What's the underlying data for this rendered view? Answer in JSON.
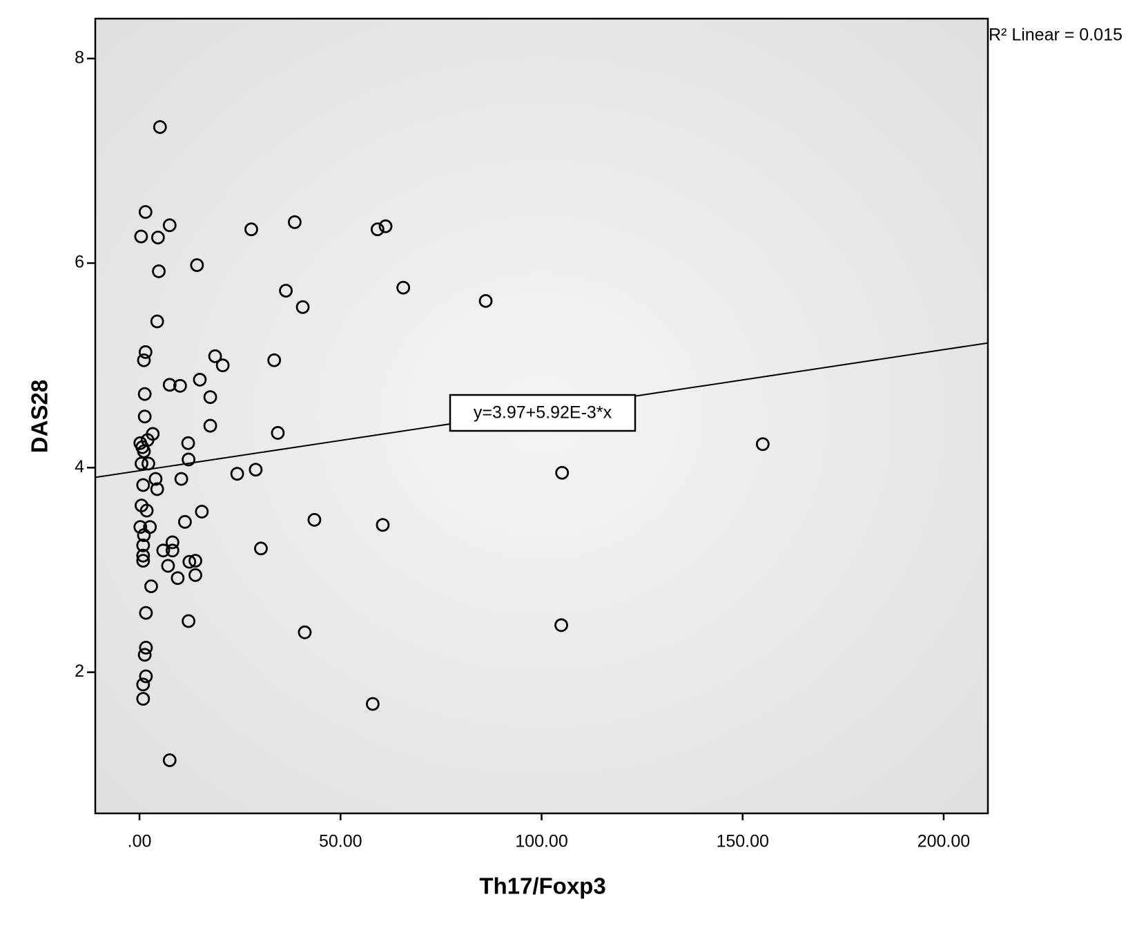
{
  "chart_data": {
    "type": "scatter",
    "x_label": "Th17/Foxp3",
    "y_label": "DAS28",
    "r2_label": "R² Linear = 0.015",
    "regression": {
      "label": "y=3.97+5.92E-3*x",
      "intercept": 3.97,
      "slope": 0.00592
    },
    "xlim": [
      -11,
      211
    ],
    "ylim": [
      0.62,
      8.39
    ],
    "xticks": [
      {
        "value": 0,
        "label": ".00"
      },
      {
        "value": 50,
        "label": "50.00"
      },
      {
        "value": 100,
        "label": "100.00"
      },
      {
        "value": 150,
        "label": "150.00"
      },
      {
        "value": 200,
        "label": "200.00"
      }
    ],
    "yticks": [
      2,
      4,
      6,
      8
    ],
    "color": "#000000",
    "x": [
      5.1,
      1.5,
      0.4,
      7.5,
      4.6,
      14.3,
      4.8,
      4.4,
      1.5,
      1.1,
      27.8,
      38.6,
      59.2,
      61.2,
      36.4,
      40.6,
      65.6,
      86.1,
      18.8,
      20.7,
      33.5,
      7.5,
      10.1,
      15.0,
      17.6,
      1.3,
      1.3,
      17.6,
      34.4,
      3.3,
      2.0,
      0.2,
      0.7,
      1.1,
      12.1,
      12.2,
      0.5,
      2.2,
      155.0,
      24.3,
      28.9,
      105.1,
      4.0,
      10.4,
      0.9,
      4.4,
      0.5,
      1.8,
      15.5,
      11.3,
      43.5,
      60.5,
      0.2,
      2.6,
      1.1,
      8.2,
      0.9,
      5.9,
      8.2,
      30.2,
      0.9,
      0.9,
      7.1,
      12.4,
      13.9,
      13.9,
      9.5,
      2.9,
      1.6,
      12.2,
      104.9,
      41.1,
      1.6,
      1.3,
      1.6,
      0.9,
      0.9,
      58.0,
      7.5
    ],
    "values": [
      7.33,
      6.5,
      6.26,
      6.37,
      6.25,
      5.98,
      5.92,
      5.43,
      5.13,
      5.05,
      6.33,
      6.4,
      6.33,
      6.36,
      5.73,
      5.57,
      5.76,
      5.63,
      5.09,
      5.0,
      5.05,
      4.81,
      4.8,
      4.86,
      4.69,
      4.72,
      4.5,
      4.41,
      4.34,
      4.33,
      4.27,
      4.24,
      4.2,
      4.16,
      4.24,
      4.08,
      4.04,
      4.04,
      4.23,
      3.94,
      3.98,
      3.95,
      3.89,
      3.89,
      3.83,
      3.79,
      3.63,
      3.58,
      3.57,
      3.47,
      3.49,
      3.44,
      3.42,
      3.42,
      3.34,
      3.27,
      3.24,
      3.19,
      3.19,
      3.21,
      3.14,
      3.09,
      3.04,
      3.08,
      3.09,
      2.95,
      2.92,
      2.84,
      2.58,
      2.5,
      2.46,
      2.39,
      2.24,
      2.17,
      1.96,
      1.88,
      1.74,
      1.69,
      1.14
    ]
  }
}
